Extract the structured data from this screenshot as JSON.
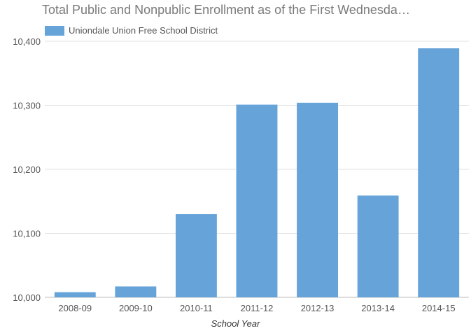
{
  "chart_data": {
    "type": "bar",
    "title": "Total Public and Nonpublic Enrollment as of the First Wednesda…",
    "xlabel": "School Year",
    "ylabel": "",
    "categories": [
      "2008-09",
      "2009-10",
      "2010-11",
      "2011-12",
      "2012-13",
      "2013-14",
      "2014-15"
    ],
    "series": [
      {
        "name": "Uniondale Union Free School District",
        "color": "#66a3d9",
        "values": [
          10008,
          10017,
          10130,
          10301,
          10304,
          10159,
          10389
        ]
      }
    ],
    "ylim": [
      10000,
      10400
    ],
    "yticks": [
      10000,
      10100,
      10200,
      10300,
      10400
    ],
    "ytick_labels": [
      "10,000",
      "10,100",
      "10,200",
      "10,300",
      "10,400"
    ],
    "grid": true,
    "legend_position": "top-left"
  }
}
